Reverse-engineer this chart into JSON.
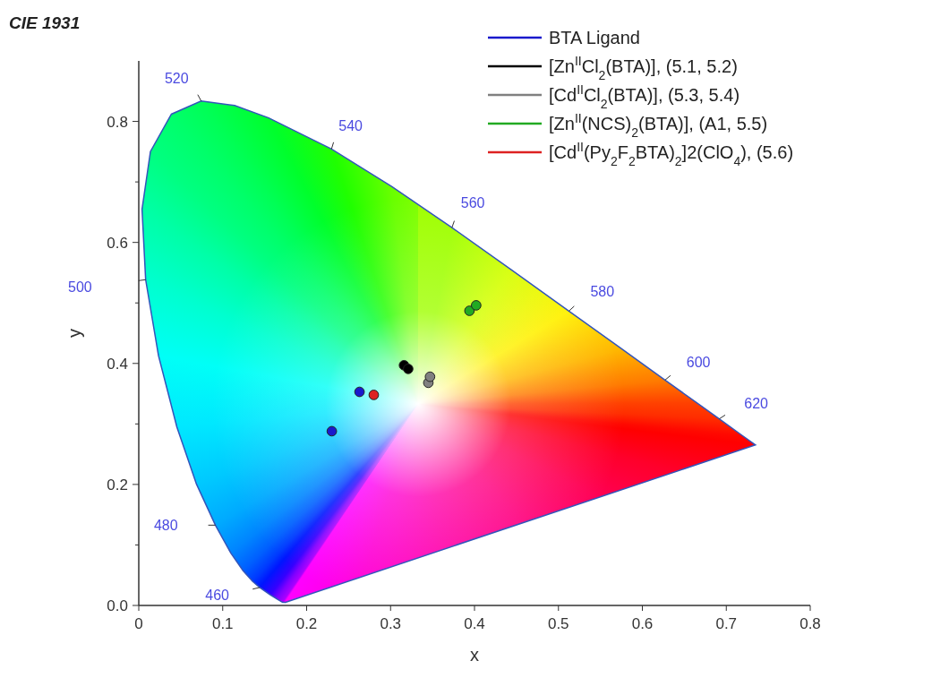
{
  "chart_data": {
    "type": "scatter",
    "title": "CIE 1931",
    "xlabel": "x",
    "ylabel": "y",
    "xlim": [
      0,
      0.8
    ],
    "ylim": [
      0,
      0.9
    ],
    "xticks": [
      0,
      {
        "value": 0.1,
        "label": "0.1"
      },
      {
        "value": 0.2,
        "label": "0.2"
      },
      {
        "value": 0.3,
        "label": "0.3"
      },
      {
        "value": 0.4,
        "label": "0.4"
      },
      {
        "value": 0.5,
        "label": "0.5"
      },
      {
        "value": 0.6,
        "label": "0.6"
      },
      {
        "value": 0.7,
        "label": "0.7"
      },
      {
        "value": 0.8,
        "label": "0.8"
      }
    ],
    "yticks": [
      {
        "value": 0,
        "label": "0.0"
      },
      {
        "value": 0.1,
        "label": null
      },
      {
        "value": 0.2,
        "label": "0.2"
      },
      {
        "value": 0.3,
        "label": null
      },
      {
        "value": 0.4,
        "label": "0.4"
      },
      {
        "value": 0.5,
        "label": null
      },
      {
        "value": 0.6,
        "label": "0.6"
      },
      {
        "value": 0.7,
        "label": null
      },
      {
        "value": 0.8,
        "label": "0.8"
      }
    ],
    "grid": false,
    "legend": "top right",
    "marker": "circle",
    "series": [
      {
        "name": "BTA Ligand",
        "color": "#1a1acc",
        "x": [
          0.23,
          0.263
        ],
        "values": [
          0.288,
          0.353
        ]
      },
      {
        "name": "[Zn$^{II}$Cl$_{2}$(BTA)], (5.1, 5.2)",
        "color": "#000000",
        "x": [
          0.316,
          0.321
        ],
        "values": [
          0.397,
          0.391
        ]
      },
      {
        "name": "[Cd$^{II}$Cl$_{2}$(BTA)], (5.3, 5.4)",
        "color": "#808080",
        "x": [
          0.345,
          0.347
        ],
        "values": [
          0.368,
          0.378
        ]
      },
      {
        "name": "[Zn$^{II}$(NCS)$_{2}$(BTA)], (A1, 5.5)",
        "color": "#22aa22",
        "x": [
          0.394,
          0.402
        ],
        "values": [
          0.487,
          0.496
        ]
      },
      {
        "name": "[Cd$^{II}$(Py$_{2}$F$_{2}$BTA)$_{2}$]2(ClO$_{4}$), (5.6)",
        "color": "#dd2222",
        "x": [
          0.28
        ],
        "values": [
          0.348
        ]
      }
    ],
    "annotations": [
      "460",
      "480",
      "500",
      "520",
      "540",
      "560",
      "580",
      "600",
      "620"
    ]
  }
}
